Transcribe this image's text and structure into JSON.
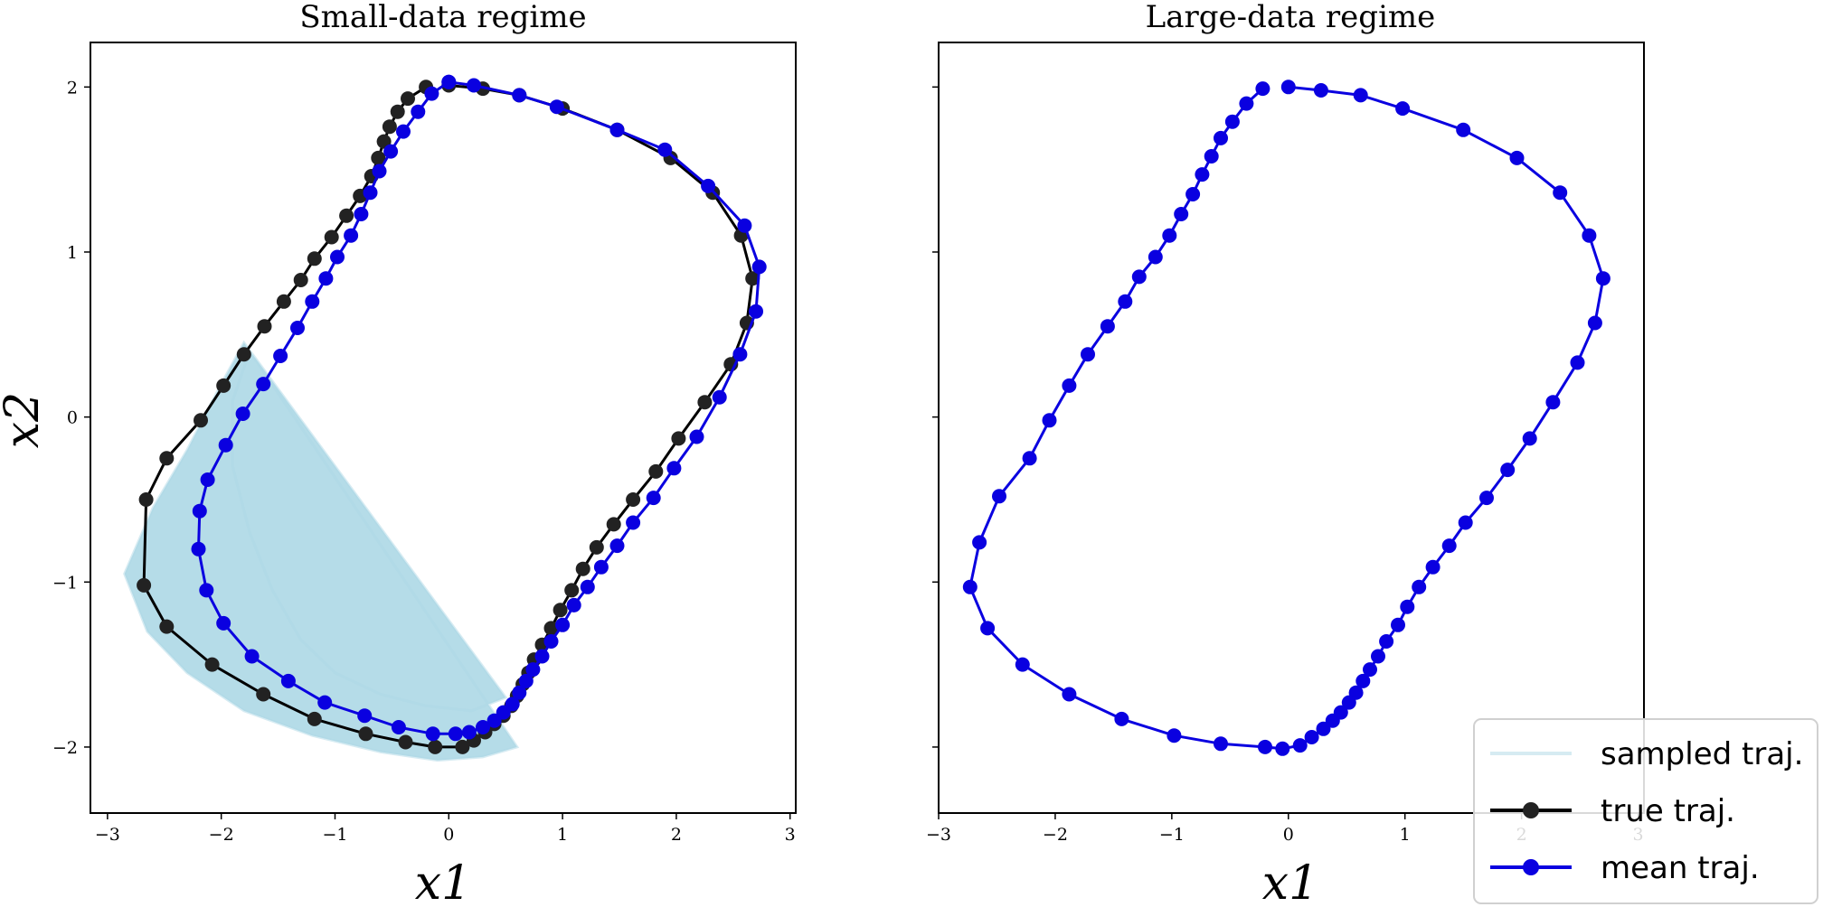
{
  "chart_data": [
    {
      "type": "line",
      "title": "Small-data regime",
      "xlabel": "x1",
      "ylabel": "x2",
      "xlim": [
        -3.15,
        3.05
      ],
      "ylim": [
        -2.4,
        2.27
      ],
      "xticks": [
        "−3",
        "−2",
        "−1",
        "0",
        "1",
        "2",
        "3"
      ],
      "yticks": [
        "−2",
        "−1",
        "0",
        "1",
        "2"
      ],
      "series": [
        {
          "name": "sampled traj.",
          "color": "#add8e6",
          "kind": "band",
          "inner": [
            [
              0.5,
              -1.7
            ],
            [
              0.2,
              -1.78
            ],
            [
              -0.2,
              -1.75
            ],
            [
              -0.6,
              -1.68
            ],
            [
              -1.0,
              -1.55
            ],
            [
              -1.3,
              -1.35
            ],
            [
              -1.55,
              -1.05
            ],
            [
              -1.75,
              -0.7
            ],
            [
              -1.9,
              -0.3
            ],
            [
              -1.9,
              0.1
            ],
            [
              -1.75,
              0.4
            ]
          ],
          "outer": [
            [
              -1.8,
              0.45
            ],
            [
              -2.0,
              0.2
            ],
            [
              -2.3,
              -0.2
            ],
            [
              -2.6,
              -0.55
            ],
            [
              -2.85,
              -0.95
            ],
            [
              -2.65,
              -1.3
            ],
            [
              -2.3,
              -1.55
            ],
            [
              -1.8,
              -1.78
            ],
            [
              -1.2,
              -1.93
            ],
            [
              -0.6,
              -2.03
            ],
            [
              -0.1,
              -2.08
            ],
            [
              0.3,
              -2.06
            ],
            [
              0.6,
              -2.0
            ]
          ]
        },
        {
          "name": "true traj.",
          "color": "#000000",
          "x": [
            0.0,
            0.3,
            0.62,
            1.0,
            1.48,
            1.95,
            2.32,
            2.57,
            2.67,
            2.62,
            2.48,
            2.25,
            2.02,
            1.82,
            1.62,
            1.45,
            1.3,
            1.18,
            1.08,
            0.98,
            0.9,
            0.82,
            0.75,
            0.7,
            0.65,
            0.6,
            0.55,
            0.48,
            0.4,
            0.32,
            0.22,
            0.12,
            -0.12,
            -0.38,
            -0.73,
            -1.18,
            -1.63,
            -2.08,
            -2.48,
            -2.68,
            -2.66,
            -2.48,
            -2.18,
            -1.98,
            -1.8,
            -1.62,
            -1.45,
            -1.3,
            -1.18,
            -1.03,
            -0.9,
            -0.78,
            -0.68,
            -0.62,
            -0.57,
            -0.52,
            -0.45,
            -0.36,
            -0.2
          ],
          "y": [
            2.01,
            1.99,
            1.95,
            1.87,
            1.74,
            1.57,
            1.36,
            1.1,
            0.84,
            0.57,
            0.32,
            0.09,
            -0.13,
            -0.33,
            -0.5,
            -0.65,
            -0.79,
            -0.92,
            -1.05,
            -1.17,
            -1.28,
            -1.38,
            -1.47,
            -1.55,
            -1.62,
            -1.69,
            -1.75,
            -1.81,
            -1.86,
            -1.91,
            -1.96,
            -2.0,
            -2.0,
            -1.97,
            -1.92,
            -1.83,
            -1.68,
            -1.5,
            -1.27,
            -1.02,
            -0.5,
            -0.25,
            -0.02,
            0.19,
            0.38,
            0.55,
            0.7,
            0.83,
            0.96,
            1.09,
            1.22,
            1.34,
            1.46,
            1.57,
            1.67,
            1.76,
            1.85,
            1.93,
            2.0
          ]
        },
        {
          "name": "mean traj.",
          "color": "#0a00e0",
          "x": [
            0.0,
            0.22,
            0.62,
            0.95,
            1.48,
            1.9,
            2.28,
            2.6,
            2.73,
            2.7,
            2.56,
            2.38,
            2.18,
            1.98,
            1.8,
            1.62,
            1.48,
            1.34,
            1.22,
            1.1,
            1.0,
            0.9,
            0.82,
            0.74,
            0.68,
            0.62,
            0.56,
            0.48,
            0.4,
            0.3,
            0.18,
            0.06,
            -0.14,
            -0.44,
            -0.74,
            -1.09,
            -1.41,
            -1.73,
            -1.98,
            -2.13,
            -2.2,
            -2.19,
            -2.12,
            -1.96,
            -1.81,
            -1.63,
            -1.48,
            -1.33,
            -1.2,
            -1.08,
            -0.98,
            -0.86,
            -0.77,
            -0.69,
            -0.61,
            -0.51,
            -0.4,
            -0.27,
            -0.15,
            0.0
          ],
          "y": [
            2.03,
            2.01,
            1.95,
            1.88,
            1.74,
            1.62,
            1.4,
            1.16,
            0.91,
            0.64,
            0.38,
            0.12,
            -0.12,
            -0.31,
            -0.49,
            -0.64,
            -0.78,
            -0.91,
            -1.03,
            -1.14,
            -1.26,
            -1.36,
            -1.45,
            -1.53,
            -1.6,
            -1.67,
            -1.74,
            -1.79,
            -1.84,
            -1.88,
            -1.91,
            -1.92,
            -1.92,
            -1.88,
            -1.81,
            -1.73,
            -1.6,
            -1.45,
            -1.25,
            -1.05,
            -0.8,
            -0.57,
            -0.38,
            -0.17,
            0.02,
            0.2,
            0.37,
            0.54,
            0.7,
            0.84,
            0.97,
            1.1,
            1.23,
            1.36,
            1.49,
            1.61,
            1.73,
            1.85,
            1.96,
            2.03
          ]
        }
      ]
    },
    {
      "type": "line",
      "title": "Large-data regime",
      "xlabel": "x1",
      "xlim": [
        -3.0,
        3.05
      ],
      "ylim": [
        -2.4,
        2.27
      ],
      "xticks": [
        "−3",
        "−2",
        "−1",
        "0",
        "1",
        "2",
        "3"
      ],
      "series": [
        {
          "name": "mean traj.",
          "color": "#0a00e0",
          "x": [
            0.0,
            0.28,
            0.62,
            0.98,
            1.5,
            1.96,
            2.33,
            2.58,
            2.7,
            2.63,
            2.48,
            2.27,
            2.07,
            1.88,
            1.7,
            1.52,
            1.38,
            1.24,
            1.12,
            1.02,
            0.94,
            0.84,
            0.77,
            0.7,
            0.64,
            0.58,
            0.52,
            0.45,
            0.38,
            0.3,
            0.2,
            0.1,
            -0.05,
            -0.2,
            -0.58,
            -0.98,
            -1.43,
            -1.88,
            -2.28,
            -2.58,
            -2.73,
            -2.65,
            -2.48,
            -2.22,
            -2.05,
            -1.88,
            -1.72,
            -1.55,
            -1.4,
            -1.28,
            -1.14,
            -1.02,
            -0.92,
            -0.82,
            -0.74,
            -0.66,
            -0.58,
            -0.48,
            -0.36,
            -0.22
          ],
          "y": [
            2.0,
            1.98,
            1.95,
            1.87,
            1.74,
            1.57,
            1.36,
            1.1,
            0.84,
            0.57,
            0.33,
            0.09,
            -0.13,
            -0.32,
            -0.49,
            -0.64,
            -0.78,
            -0.91,
            -1.03,
            -1.15,
            -1.26,
            -1.36,
            -1.45,
            -1.53,
            -1.6,
            -1.67,
            -1.73,
            -1.79,
            -1.84,
            -1.89,
            -1.94,
            -1.99,
            -2.01,
            -2.0,
            -1.98,
            -1.93,
            -1.83,
            -1.68,
            -1.5,
            -1.28,
            -1.03,
            -0.76,
            -0.48,
            -0.25,
            -0.02,
            0.19,
            0.38,
            0.55,
            0.7,
            0.85,
            0.97,
            1.1,
            1.23,
            1.35,
            1.47,
            1.58,
            1.69,
            1.79,
            1.9,
            1.99
          ]
        }
      ]
    }
  ],
  "legend": {
    "position": "bottom-right",
    "items": [
      {
        "label": "sampled traj.",
        "color": "#add8e6",
        "marker": false
      },
      {
        "label": "true traj.",
        "color": "#000000",
        "marker": true
      },
      {
        "label": "mean traj.",
        "color": "#0a00e0",
        "marker": true
      }
    ]
  }
}
